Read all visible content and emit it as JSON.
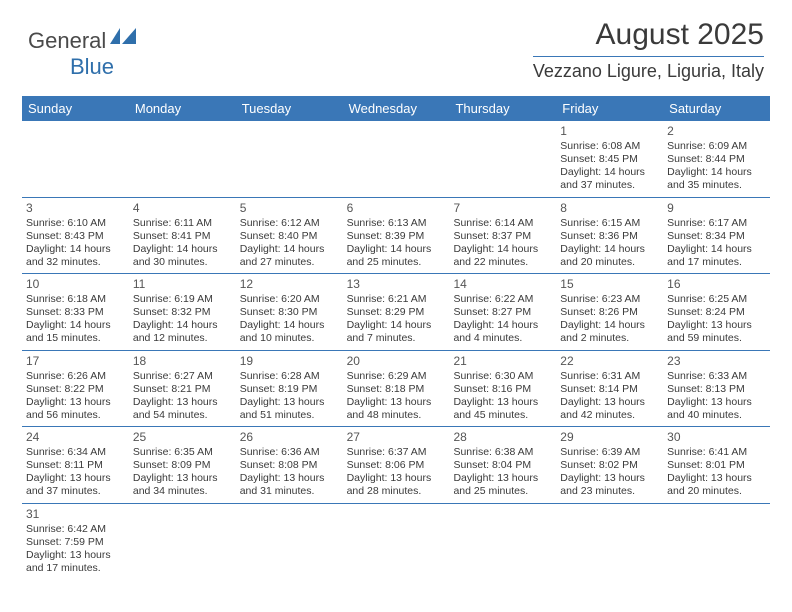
{
  "logo": {
    "text1": "General",
    "text2": "Blue"
  },
  "title": "August 2025",
  "location": "Vezzano Ligure, Liguria, Italy",
  "colors": {
    "header_bg": "#3a77b7",
    "header_text": "#ffffff",
    "border": "#3a77b7",
    "body_text": "#3a3a3a",
    "logo_gray": "#4a4a4a",
    "logo_blue": "#2f6fab",
    "background": "#ffffff"
  },
  "typography": {
    "title_fontsize": 30,
    "location_fontsize": 18,
    "dayheader_fontsize": 13,
    "cell_fontsize": 10.5,
    "daynum_fontsize": 12,
    "logo_fontsize": 22
  },
  "day_names": [
    "Sunday",
    "Monday",
    "Tuesday",
    "Wednesday",
    "Thursday",
    "Friday",
    "Saturday"
  ],
  "weeks": [
    [
      null,
      null,
      null,
      null,
      null,
      {
        "n": "1",
        "sr": "6:08 AM",
        "ss": "8:45 PM",
        "dl": "14 hours and 37 minutes."
      },
      {
        "n": "2",
        "sr": "6:09 AM",
        "ss": "8:44 PM",
        "dl": "14 hours and 35 minutes."
      }
    ],
    [
      {
        "n": "3",
        "sr": "6:10 AM",
        "ss": "8:43 PM",
        "dl": "14 hours and 32 minutes."
      },
      {
        "n": "4",
        "sr": "6:11 AM",
        "ss": "8:41 PM",
        "dl": "14 hours and 30 minutes."
      },
      {
        "n": "5",
        "sr": "6:12 AM",
        "ss": "8:40 PM",
        "dl": "14 hours and 27 minutes."
      },
      {
        "n": "6",
        "sr": "6:13 AM",
        "ss": "8:39 PM",
        "dl": "14 hours and 25 minutes."
      },
      {
        "n": "7",
        "sr": "6:14 AM",
        "ss": "8:37 PM",
        "dl": "14 hours and 22 minutes."
      },
      {
        "n": "8",
        "sr": "6:15 AM",
        "ss": "8:36 PM",
        "dl": "14 hours and 20 minutes."
      },
      {
        "n": "9",
        "sr": "6:17 AM",
        "ss": "8:34 PM",
        "dl": "14 hours and 17 minutes."
      }
    ],
    [
      {
        "n": "10",
        "sr": "6:18 AM",
        "ss": "8:33 PM",
        "dl": "14 hours and 15 minutes."
      },
      {
        "n": "11",
        "sr": "6:19 AM",
        "ss": "8:32 PM",
        "dl": "14 hours and 12 minutes."
      },
      {
        "n": "12",
        "sr": "6:20 AM",
        "ss": "8:30 PM",
        "dl": "14 hours and 10 minutes."
      },
      {
        "n": "13",
        "sr": "6:21 AM",
        "ss": "8:29 PM",
        "dl": "14 hours and 7 minutes."
      },
      {
        "n": "14",
        "sr": "6:22 AM",
        "ss": "8:27 PM",
        "dl": "14 hours and 4 minutes."
      },
      {
        "n": "15",
        "sr": "6:23 AM",
        "ss": "8:26 PM",
        "dl": "14 hours and 2 minutes."
      },
      {
        "n": "16",
        "sr": "6:25 AM",
        "ss": "8:24 PM",
        "dl": "13 hours and 59 minutes."
      }
    ],
    [
      {
        "n": "17",
        "sr": "6:26 AM",
        "ss": "8:22 PM",
        "dl": "13 hours and 56 minutes."
      },
      {
        "n": "18",
        "sr": "6:27 AM",
        "ss": "8:21 PM",
        "dl": "13 hours and 54 minutes."
      },
      {
        "n": "19",
        "sr": "6:28 AM",
        "ss": "8:19 PM",
        "dl": "13 hours and 51 minutes."
      },
      {
        "n": "20",
        "sr": "6:29 AM",
        "ss": "8:18 PM",
        "dl": "13 hours and 48 minutes."
      },
      {
        "n": "21",
        "sr": "6:30 AM",
        "ss": "8:16 PM",
        "dl": "13 hours and 45 minutes."
      },
      {
        "n": "22",
        "sr": "6:31 AM",
        "ss": "8:14 PM",
        "dl": "13 hours and 42 minutes."
      },
      {
        "n": "23",
        "sr": "6:33 AM",
        "ss": "8:13 PM",
        "dl": "13 hours and 40 minutes."
      }
    ],
    [
      {
        "n": "24",
        "sr": "6:34 AM",
        "ss": "8:11 PM",
        "dl": "13 hours and 37 minutes."
      },
      {
        "n": "25",
        "sr": "6:35 AM",
        "ss": "8:09 PM",
        "dl": "13 hours and 34 minutes."
      },
      {
        "n": "26",
        "sr": "6:36 AM",
        "ss": "8:08 PM",
        "dl": "13 hours and 31 minutes."
      },
      {
        "n": "27",
        "sr": "6:37 AM",
        "ss": "8:06 PM",
        "dl": "13 hours and 28 minutes."
      },
      {
        "n": "28",
        "sr": "6:38 AM",
        "ss": "8:04 PM",
        "dl": "13 hours and 25 minutes."
      },
      {
        "n": "29",
        "sr": "6:39 AM",
        "ss": "8:02 PM",
        "dl": "13 hours and 23 minutes."
      },
      {
        "n": "30",
        "sr": "6:41 AM",
        "ss": "8:01 PM",
        "dl": "13 hours and 20 minutes."
      }
    ],
    [
      {
        "n": "31",
        "sr": "6:42 AM",
        "ss": "7:59 PM",
        "dl": "13 hours and 17 minutes."
      },
      null,
      null,
      null,
      null,
      null,
      null
    ]
  ],
  "labels": {
    "sunrise": "Sunrise:",
    "sunset": "Sunset:",
    "daylight": "Daylight:"
  }
}
